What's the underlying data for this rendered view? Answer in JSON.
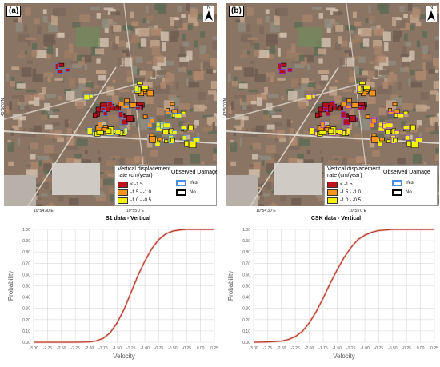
{
  "panels": [
    {
      "label": "(a)",
      "north": "N",
      "lat_label": "43°50'0\"N",
      "lon_label_1": "10°54'30\"E",
      "lon_label_2": "10°55'0\"E",
      "legend": {
        "title_line1": "Vertical displacement",
        "title_line2": "rate (cm/year)",
        "damage_title": "Observed Damage",
        "classes": [
          {
            "label": "< -1.5",
            "color": "#c0141c"
          },
          {
            "label": "-1.5 - -1.0",
            "color": "#f7941d"
          },
          {
            "label": "-1.0 - -0.5",
            "color": "#f2f200"
          }
        ],
        "damage": [
          {
            "label": "Yes",
            "color": "#4a90e2"
          },
          {
            "label": "No",
            "color": "#000000"
          }
        ]
      },
      "colors": {
        "red": "#b3121a",
        "orange": "#f7941d",
        "yellow": "#f2f200",
        "blue": "#3b82f6"
      }
    },
    {
      "label": "(b)",
      "north": "N",
      "lat_label": "43°50'0\"N",
      "lon_label_1": "10°54'30\"E",
      "lon_label_2": "10°55'0\"E",
      "legend": {
        "title_line1": "Vertical displacement",
        "title_line2": "rate (cm/year)",
        "damage_title": "Observed Damage",
        "classes": [
          {
            "label": "< -1.5",
            "color": "#c0141c"
          },
          {
            "label": "-1.5 - -1.0",
            "color": "#f7941d"
          },
          {
            "label": "-1.0 - -0.5",
            "color": "#f2f200"
          }
        ],
        "damage": [
          {
            "label": "Yes",
            "color": "#4a90e2"
          },
          {
            "label": "No",
            "color": "#000000"
          }
        ]
      },
      "colors": {
        "red": "#b3121a",
        "orange": "#f7941d",
        "yellow": "#f2f200",
        "blue": "#8a2be2"
      }
    }
  ],
  "chart_data": [
    {
      "type": "line",
      "title": "S1 data - Vertical",
      "xlabel": "Velocity",
      "ylabel": "Probability",
      "xlim": [
        -3.0,
        0.25
      ],
      "ylim": [
        0,
        1
      ],
      "grid": true,
      "x_ticks": [
        "-3.00",
        "-2.75",
        "-2.50",
        "-2.25",
        "-2.00",
        "-1.75",
        "-1.50",
        "-1.25",
        "-1.00",
        "-0.75",
        "-0.50",
        "-0.25",
        "0.00",
        "0.25"
      ],
      "y_ticks": [
        "0.00",
        "0.10",
        "0.20",
        "0.30",
        "0.40",
        "0.50",
        "0.60",
        "0.70",
        "0.80",
        "0.90",
        "1.00"
      ],
      "line_color": "#b5412a",
      "series": [
        {
          "x": [
            -3.0,
            -2.25,
            -2.0,
            -1.875,
            -1.75,
            -1.625,
            -1.5,
            -1.375,
            -1.25,
            -1.125,
            -1.0,
            -0.875,
            -0.75,
            -0.625,
            -0.5,
            -0.375,
            -0.25,
            0.0,
            0.25
          ],
          "y": [
            0.0,
            0.0,
            0.003,
            0.011,
            0.033,
            0.083,
            0.17,
            0.29,
            0.44,
            0.59,
            0.72,
            0.83,
            0.91,
            0.96,
            0.985,
            0.995,
            1.0,
            1.0,
            1.0
          ]
        }
      ]
    },
    {
      "type": "line",
      "title": "CSK data - Vertical",
      "xlabel": "Velocity",
      "ylabel": "Probability",
      "xlim": [
        -3.0,
        0.25
      ],
      "ylim": [
        0,
        1
      ],
      "grid": true,
      "x_ticks": [
        "-3.00",
        "-2.75",
        "-2.50",
        "-2.25",
        "-2.00",
        "-1.75",
        "-1.50",
        "-1.25",
        "-1.00",
        "-0.75",
        "-0.50",
        "-0.25",
        "0.00",
        "0.25"
      ],
      "y_ticks": [
        "0.00",
        "0.10",
        "0.20",
        "0.30",
        "0.40",
        "0.50",
        "0.60",
        "0.70",
        "0.80",
        "0.90",
        "1.00"
      ],
      "line_color": "#b5412a",
      "series": [
        {
          "x": [
            -3.0,
            -2.75,
            -2.5,
            -2.375,
            -2.25,
            -2.125,
            -2.0,
            -1.875,
            -1.75,
            -1.625,
            -1.5,
            -1.375,
            -1.25,
            -1.125,
            -1.0,
            -0.875,
            -0.75,
            -0.5,
            -0.25,
            0.0,
            0.25
          ],
          "y": [
            0.0,
            0.002,
            0.01,
            0.024,
            0.05,
            0.095,
            0.17,
            0.27,
            0.39,
            0.52,
            0.64,
            0.75,
            0.84,
            0.91,
            0.95,
            0.975,
            0.99,
            1.0,
            1.0,
            1.0,
            1.0
          ]
        }
      ]
    }
  ]
}
